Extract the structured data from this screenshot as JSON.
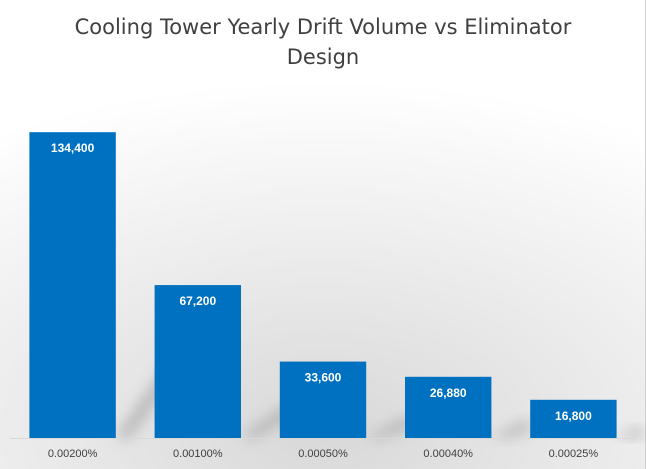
{
  "chart_data": {
    "type": "bar",
    "title": "Cooling Tower Yearly Drift Volume vs Eliminator Design",
    "categories": [
      "0.00200%",
      "0.00100%",
      "0.00050%",
      "0.00040%",
      "0.00025%"
    ],
    "values": [
      134400,
      67200,
      33600,
      26880,
      16800
    ],
    "data_labels": [
      "134,400",
      "67,200",
      "33,600",
      "26,880",
      "16,800"
    ],
    "xlabel": "",
    "ylabel": "",
    "ylim": [
      0,
      160000
    ],
    "grid": false,
    "legend": "none",
    "bar_color": "#0070c0",
    "shadow_color": "#8c8c8c"
  }
}
